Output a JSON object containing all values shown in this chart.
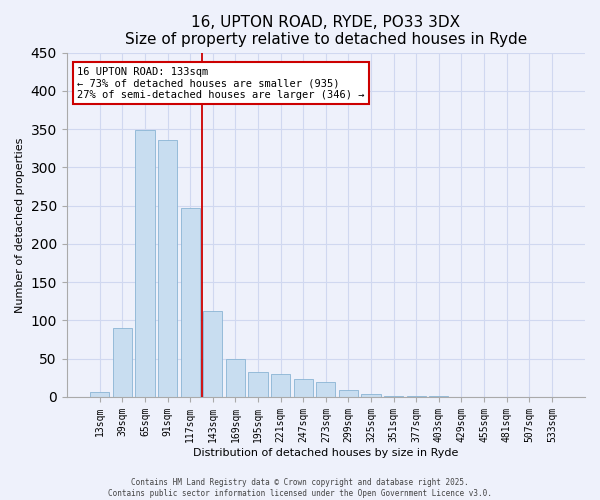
{
  "title": "16, UPTON ROAD, RYDE, PO33 3DX",
  "subtitle": "Size of property relative to detached houses in Ryde",
  "xlabel": "Distribution of detached houses by size in Ryde",
  "ylabel": "Number of detached properties",
  "bar_labels": [
    "13sqm",
    "39sqm",
    "65sqm",
    "91sqm",
    "117sqm",
    "143sqm",
    "169sqm",
    "195sqm",
    "221sqm",
    "247sqm",
    "273sqm",
    "299sqm",
    "325sqm",
    "351sqm",
    "377sqm",
    "403sqm",
    "429sqm",
    "455sqm",
    "481sqm",
    "507sqm",
    "533sqm"
  ],
  "bar_values": [
    6,
    90,
    349,
    336,
    247,
    113,
    50,
    32,
    30,
    24,
    20,
    9,
    4,
    1,
    1,
    1,
    0,
    0,
    0,
    0,
    0
  ],
  "bar_color": "#c8ddf0",
  "bar_edge_color": "#8ab4d4",
  "vline_x": 4.5,
  "vline_color": "#cc0000",
  "ylim": [
    0,
    450
  ],
  "ann_line1": "16 UPTON ROAD: 133sqm",
  "ann_line2": "← 73% of detached houses are smaller (935)",
  "ann_line3": "27% of semi-detached houses are larger (346) →",
  "footer_line1": "Contains HM Land Registry data © Crown copyright and database right 2025.",
  "footer_line2": "Contains public sector information licensed under the Open Government Licence v3.0.",
  "bg_color": "#eef1fb",
  "grid_color": "#d0d8f0",
  "title_fontsize": 11,
  "axis_label_fontsize": 8,
  "tick_fontsize": 7
}
